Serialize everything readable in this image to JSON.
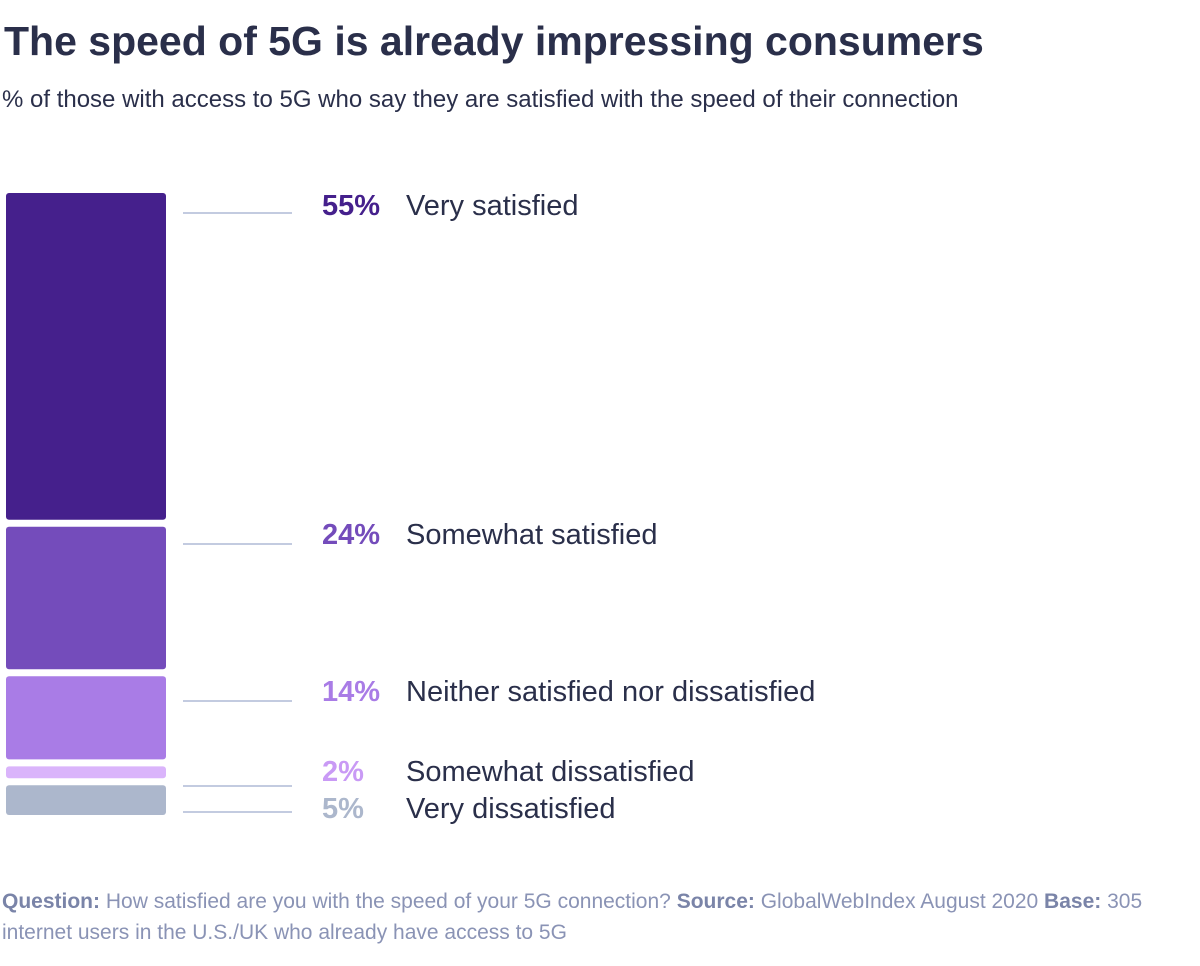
{
  "title": "The speed of 5G is already impressing consumers",
  "subtitle": "% of those with access to 5G who say they are satisfied with the speed of their connection",
  "chart_data": {
    "type": "bar",
    "stacked": true,
    "orientation": "vertical-single-stack",
    "categories": [
      "Very satisfied",
      "Somewhat satisfied",
      "Neither satisfied nor dissatisfied",
      "Somewhat dissatisfied",
      "Very dissatisfied"
    ],
    "values": [
      55,
      24,
      14,
      2,
      5
    ],
    "value_labels": [
      "55%",
      "24%",
      "14%",
      "2%",
      "5%"
    ],
    "colors": [
      "#45208c",
      "#744cbb",
      "#a97ce6",
      "#dab4fb",
      "#acb7cc"
    ],
    "label_colors": [
      "#45208c",
      "#744cbb",
      "#a97ce6",
      "#c99af5",
      "#acb7cc"
    ],
    "leader_line_color": "#c3cbe0",
    "grid": false
  },
  "footer": {
    "question_label": "Question:",
    "question": "How satisfied are you with the speed of your 5G connection?",
    "source_label": "Source:",
    "source": "GlobalWebIndex August 2020",
    "base_label": "Base:",
    "base": "305 internet users in the U.S./UK who already have access to 5G"
  }
}
